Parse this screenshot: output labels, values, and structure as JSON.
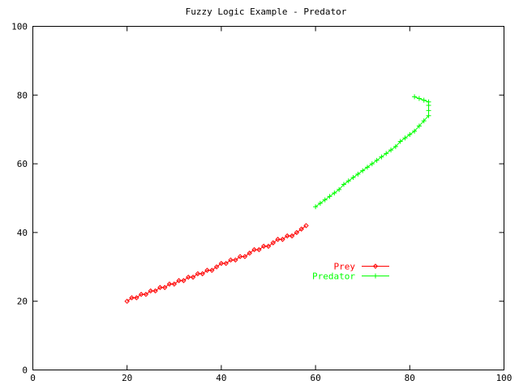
{
  "chart_data": {
    "type": "line",
    "title": "Fuzzy Logic Example - Predator",
    "xlabel": "",
    "ylabel": "",
    "xlim": [
      0,
      100
    ],
    "ylim": [
      0,
      100
    ],
    "xticks": [
      0,
      20,
      40,
      60,
      80,
      100
    ],
    "yticks": [
      0,
      20,
      40,
      60,
      80,
      100
    ],
    "grid": false,
    "legend_position": "middle-right",
    "series": [
      {
        "name": "Prey",
        "color": "#ff0000",
        "marker": "diamond",
        "x": [
          20,
          21,
          22,
          23,
          24,
          25,
          26,
          27,
          28,
          29,
          30,
          31,
          32,
          33,
          34,
          35,
          36,
          37,
          38,
          39,
          40,
          41,
          42,
          43,
          44,
          45,
          46,
          47,
          48,
          49,
          50,
          51,
          52,
          53,
          54,
          55,
          56,
          57,
          58
        ],
        "y": [
          20,
          21,
          21,
          22,
          22,
          23,
          23,
          24,
          24,
          25,
          25,
          26,
          26,
          27,
          27,
          28,
          28,
          29,
          29,
          30,
          31,
          31,
          32,
          32,
          33,
          33,
          34,
          35,
          35,
          36,
          36,
          37,
          38,
          38,
          39,
          39,
          40,
          41,
          42
        ]
      },
      {
        "name": "Predator",
        "color": "#00ff00",
        "marker": "plus",
        "x": [
          60,
          61,
          62,
          63,
          64,
          65,
          66,
          67,
          68,
          69,
          70,
          71,
          72,
          73,
          74,
          75,
          76,
          77,
          78,
          79,
          80,
          81,
          82,
          83,
          84,
          84,
          84,
          84,
          83,
          82,
          81
        ],
        "y": [
          47.5,
          48.5,
          49.5,
          50.5,
          51.5,
          52.5,
          54,
          55,
          56,
          57,
          58,
          59,
          60,
          61,
          62,
          63,
          64,
          65,
          66.5,
          67.5,
          68.5,
          69.5,
          71,
          72.5,
          74,
          75.5,
          77,
          78,
          78.5,
          79,
          79.5
        ]
      }
    ]
  }
}
